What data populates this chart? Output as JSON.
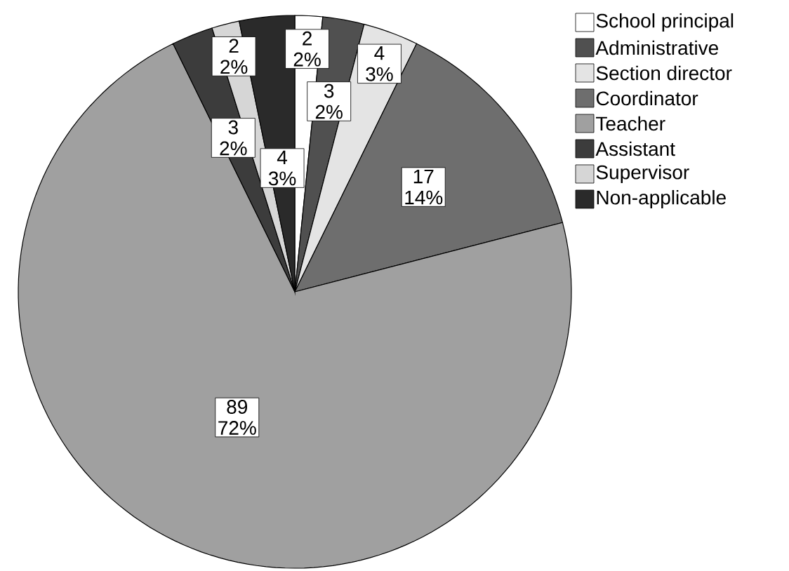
{
  "chart_data": {
    "type": "pie",
    "categories": [
      "School principal",
      "Administrative",
      "Section director",
      "Coordinator",
      "Teacher",
      "Assistant",
      "Supervisor",
      "Non-applicable"
    ],
    "values": [
      2,
      3,
      4,
      17,
      89,
      3,
      2,
      4
    ],
    "value_labels": [
      "2 2%",
      "3 2%",
      "4 3%",
      "17 14%",
      "89 72%",
      "3 2%",
      "2 2%",
      "4 3%"
    ],
    "colors": [
      "#ffffff",
      "#505050",
      "#e4e4e4",
      "#6e6e6e",
      "#a0a0a0",
      "#3c3c3c",
      "#d6d6d6",
      "#2a2a2a"
    ],
    "legend": "top right"
  }
}
